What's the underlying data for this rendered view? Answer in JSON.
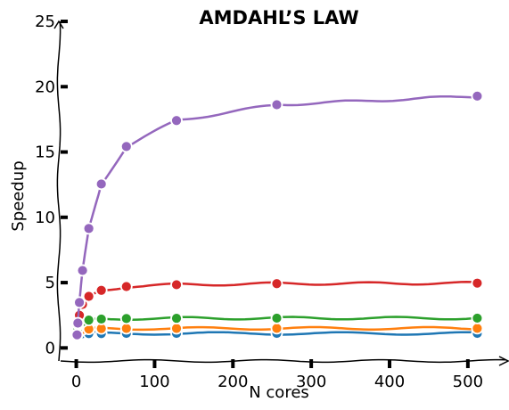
{
  "chart_data": {
    "type": "line",
    "title": "AMDAHL’S LAW",
    "xlabel": "N cores",
    "ylabel": "Speedup",
    "xlim": [
      -20,
      540
    ],
    "ylim": [
      -1,
      25
    ],
    "xticks": [
      0,
      100,
      200,
      300,
      400,
      500
    ],
    "yticks": [
      0,
      5,
      10,
      15,
      20,
      25
    ],
    "grid": false,
    "legend": "none",
    "x": [
      1,
      2,
      4,
      8,
      16,
      32,
      64,
      128,
      256,
      512
    ],
    "series": [
      {
        "color": "#1f77b4",
        "values": [
          1.0,
          1.05,
          1.08,
          1.09,
          1.1,
          1.1,
          1.11,
          1.11,
          1.11,
          1.11
        ]
      },
      {
        "color": "#ff7f0e",
        "values": [
          1.0,
          1.2,
          1.33,
          1.41,
          1.45,
          1.48,
          1.49,
          1.49,
          1.5,
          1.5
        ]
      },
      {
        "color": "#2ca02c",
        "values": [
          1.0,
          1.5,
          1.8,
          2.0,
          2.13,
          2.21,
          2.25,
          2.27,
          2.28,
          2.28
        ]
      },
      {
        "color": "#d62728",
        "values": [
          1.0,
          1.82,
          2.5,
          3.33,
          3.95,
          4.41,
          4.7,
          4.84,
          4.92,
          4.96
        ]
      },
      {
        "color": "#9467bd",
        "values": [
          1.0,
          1.9,
          3.48,
          5.93,
          9.14,
          12.55,
          15.42,
          17.41,
          18.62,
          19.28
        ]
      }
    ]
  }
}
